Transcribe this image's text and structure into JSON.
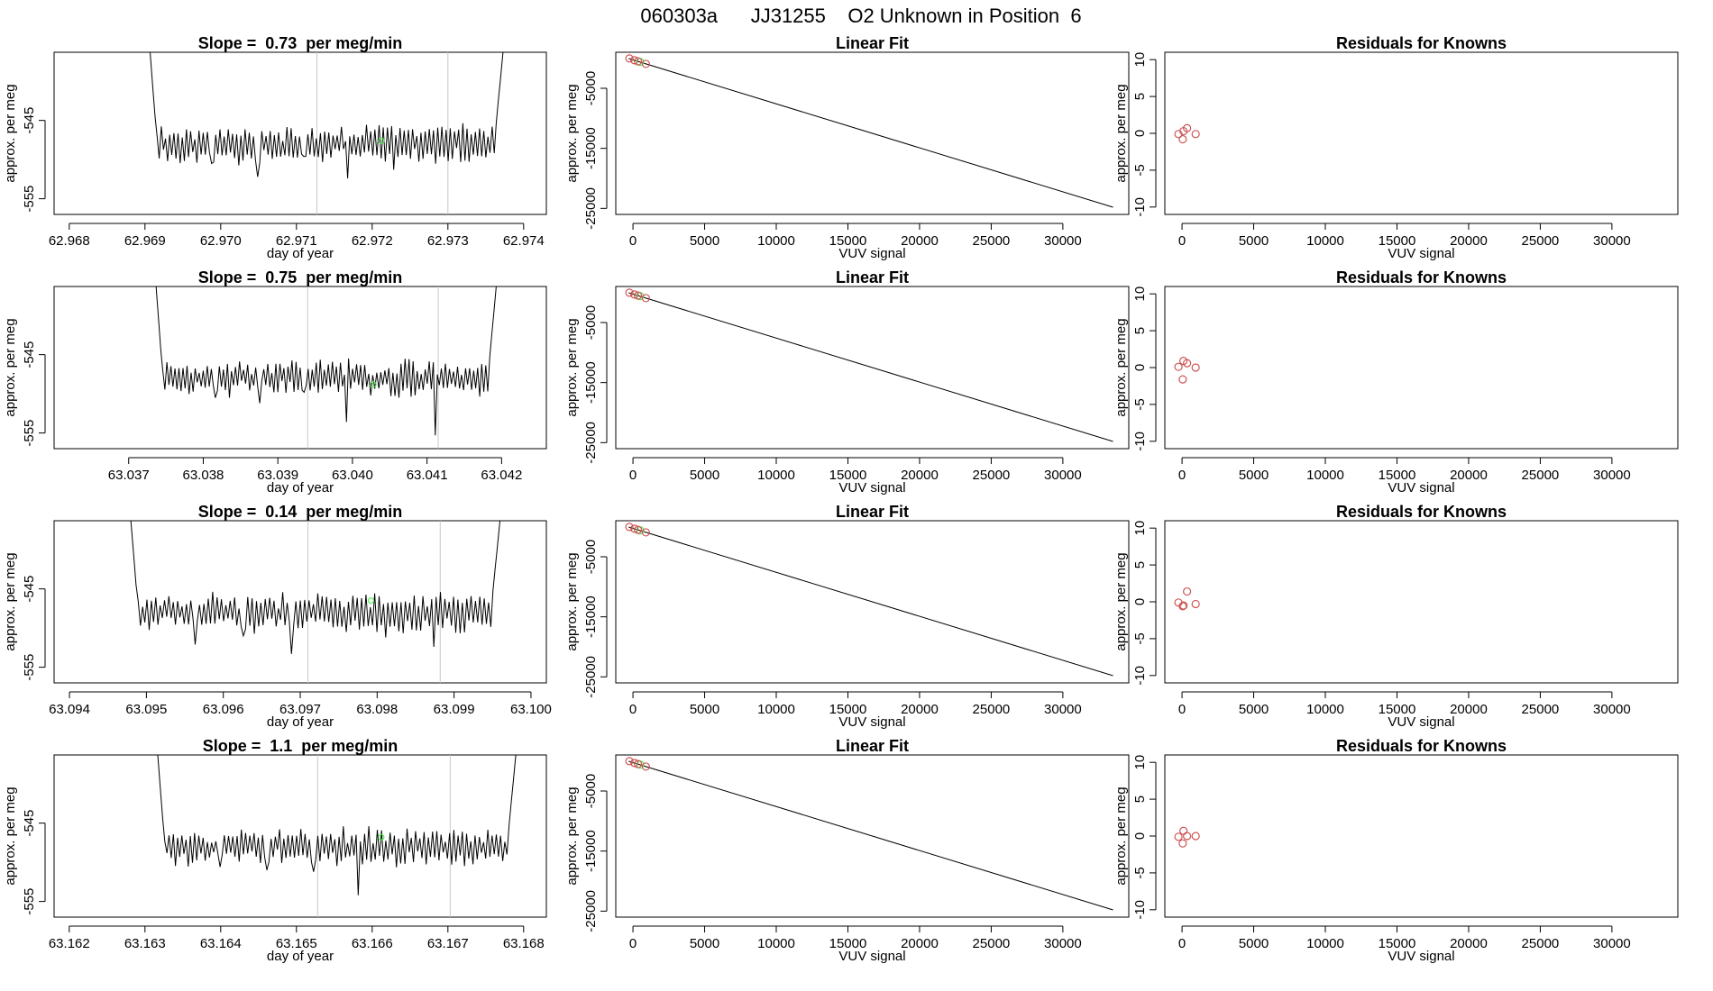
{
  "page_title": "060303a      JJ31255    O2 Unknown in Position  6",
  "colors": {
    "trace": "#000000",
    "guide": "#c8c8c8",
    "marker": "#55ee55",
    "point": "#cc5555"
  },
  "chart_data": [
    {
      "type": "line",
      "panel": "time-series",
      "row": 1,
      "title": "Slope =  0.73  per meg/min",
      "xlabel": "day of year",
      "ylabel": "approx. per meg",
      "xlim": [
        62.9678,
        62.9743
      ],
      "ylim": [
        -557,
        -536.3
      ],
      "xticks": [
        "62.968",
        "62.969",
        "62.970",
        "62.971",
        "62.972",
        "62.973",
        "62.974"
      ],
      "xtick_values": [
        62.968,
        62.969,
        62.97,
        62.971,
        62.972,
        62.973,
        62.974
      ],
      "yticks": [
        "-545",
        "-555"
      ],
      "ytick_values": [
        -545,
        -555
      ],
      "guide_lines_x": [
        62.97127,
        62.973
      ],
      "trace": {
        "x_start": 62.96905,
        "x_end": 62.97375,
        "start_level": -534,
        "end_level": -534,
        "mean": -548,
        "amplitude": 2.2,
        "seed": 11,
        "dips": [
          -550.5,
          -552.2,
          -549.6,
          -552.4,
          -551.3,
          -549.6
        ]
      },
      "marker": {
        "x": 62.97212,
        "y": -547.6
      }
    },
    {
      "type": "line",
      "panel": "linear-fit",
      "row": 1,
      "title": "Linear Fit",
      "xlabel": "VUV signal",
      "ylabel": "approx. per meg",
      "xlim": [
        -1200,
        34600
      ],
      "ylim": [
        -26000,
        1000
      ],
      "xticks": [
        "0",
        "5000",
        "10000",
        "15000",
        "20000",
        "25000",
        "30000"
      ],
      "yticks": [
        "-5000",
        "-15000",
        "-25000"
      ],
      "ytick_values": [
        -5000,
        -15000,
        -25000
      ],
      "fit_line": {
        "x": [
          -300,
          33500
        ],
        "y": [
          -50,
          -24800
        ]
      },
      "known_points": [
        {
          "x": -250,
          "y": -30
        },
        {
          "x": 100,
          "y": -330
        },
        {
          "x": 350,
          "y": -520
        },
        {
          "x": 900,
          "y": -940
        }
      ],
      "unknown_points": [
        {
          "x": 500,
          "y": -600
        }
      ]
    },
    {
      "type": "scatter",
      "panel": "residuals",
      "row": 1,
      "title": "Residuals for Knowns",
      "xlabel": "VUV signal",
      "ylabel": "approx. per meg",
      "xlim": [
        -1200,
        34600
      ],
      "ylim": [
        -11,
        11
      ],
      "xticks": [
        "0",
        "5000",
        "10000",
        "15000",
        "20000",
        "25000",
        "30000"
      ],
      "yticks": [
        "10",
        "5",
        "0",
        "-5",
        "-10"
      ],
      "ytick_values": [
        10,
        5,
        0,
        -5,
        -10
      ],
      "points": [
        {
          "x": -250,
          "y": -0.1
        },
        {
          "x": 100,
          "y": 0.3
        },
        {
          "x": 350,
          "y": 0.7
        },
        {
          "x": 50,
          "y": -0.8
        },
        {
          "x": 950,
          "y": -0.1
        }
      ]
    },
    {
      "type": "line",
      "panel": "time-series",
      "row": 2,
      "title": "Slope =  0.75  per meg/min",
      "xlabel": "day of year",
      "ylabel": "approx. per meg",
      "xlim": [
        63.036,
        63.0426
      ],
      "ylim": [
        -557,
        -536.3
      ],
      "xticks": [
        "63.037",
        "63.038",
        "63.039",
        "63.040",
        "63.041",
        "63.042"
      ],
      "xtick_values": [
        63.037,
        63.038,
        63.039,
        63.04,
        63.041,
        63.042
      ],
      "yticks": [
        "-545",
        "-555"
      ],
      "ytick_values": [
        -545,
        -555
      ],
      "guide_lines_x": [
        63.0394,
        63.04115
      ],
      "trace": {
        "x_start": 63.03735,
        "x_end": 63.04195,
        "start_level": -534,
        "end_level": -534,
        "mean": -548,
        "amplitude": 2.0,
        "seed": 23,
        "dips": [
          -550.5,
          -551.2,
          -549.8,
          -553.6,
          -550.3,
          -555.3
        ]
      },
      "marker": {
        "x": 63.04028,
        "y": -548.8
      }
    },
    {
      "type": "line",
      "panel": "linear-fit",
      "row": 2,
      "title": "Linear Fit",
      "xlabel": "VUV signal",
      "ylabel": "approx. per meg",
      "xlim": [
        -1200,
        34600
      ],
      "ylim": [
        -26000,
        1000
      ],
      "xticks": [
        "0",
        "5000",
        "10000",
        "15000",
        "20000",
        "25000",
        "30000"
      ],
      "yticks": [
        "-5000",
        "-15000",
        "-25000"
      ],
      "ytick_values": [
        -5000,
        -15000,
        -25000
      ],
      "fit_line": {
        "x": [
          -300,
          33500
        ],
        "y": [
          -50,
          -24800
        ]
      },
      "known_points": [
        {
          "x": -250,
          "y": -30
        },
        {
          "x": 100,
          "y": -330
        },
        {
          "x": 350,
          "y": -520
        },
        {
          "x": 900,
          "y": -940
        }
      ],
      "unknown_points": [
        {
          "x": 500,
          "y": -600
        }
      ]
    },
    {
      "type": "scatter",
      "panel": "residuals",
      "row": 2,
      "title": "Residuals for Knowns",
      "xlabel": "VUV signal",
      "ylabel": "approx. per meg",
      "xlim": [
        -1200,
        34600
      ],
      "ylim": [
        -11,
        11
      ],
      "xticks": [
        "0",
        "5000",
        "10000",
        "15000",
        "20000",
        "25000",
        "30000"
      ],
      "yticks": [
        "10",
        "5",
        "0",
        "-5",
        "-10"
      ],
      "ytick_values": [
        10,
        5,
        0,
        -5,
        -10
      ],
      "points": [
        {
          "x": -250,
          "y": 0.1
        },
        {
          "x": 100,
          "y": 0.9
        },
        {
          "x": 350,
          "y": 0.6
        },
        {
          "x": 50,
          "y": -1.6
        },
        {
          "x": 950,
          "y": 0.0
        }
      ]
    },
    {
      "type": "line",
      "panel": "time-series",
      "row": 3,
      "title": "Slope =  0.14  per meg/min",
      "xlabel": "day of year",
      "ylabel": "approx. per meg",
      "xlim": [
        63.0938,
        63.1002
      ],
      "ylim": [
        -557,
        -536.3
      ],
      "xticks": [
        "63.094",
        "63.095",
        "63.096",
        "63.097",
        "63.098",
        "63.099",
        "63.100"
      ],
      "xtick_values": [
        63.094,
        63.095,
        63.096,
        63.097,
        63.098,
        63.099,
        63.1
      ],
      "yticks": [
        "-545",
        "-555"
      ],
      "ytick_values": [
        -545,
        -555
      ],
      "guide_lines_x": [
        63.0971,
        63.09882
      ],
      "trace": {
        "x_start": 63.09478,
        "x_end": 63.09962,
        "start_level": -534,
        "end_level": -534,
        "mean": -548,
        "amplitude": 2.3,
        "seed": 37,
        "dips": [
          -552.1,
          -551.0,
          -553.3,
          -549.8,
          -551.2,
          -552.4
        ]
      },
      "marker": {
        "x": 63.09792,
        "y": -546.5
      }
    },
    {
      "type": "line",
      "panel": "linear-fit",
      "row": 3,
      "title": "Linear Fit",
      "xlabel": "VUV signal",
      "ylabel": "approx. per meg",
      "xlim": [
        -1200,
        34600
      ],
      "ylim": [
        -26000,
        1000
      ],
      "xticks": [
        "0",
        "5000",
        "10000",
        "15000",
        "20000",
        "25000",
        "30000"
      ],
      "yticks": [
        "-5000",
        "-15000",
        "-25000"
      ],
      "ytick_values": [
        -5000,
        -15000,
        -25000
      ],
      "fit_line": {
        "x": [
          -300,
          33500
        ],
        "y": [
          -50,
          -24800
        ]
      },
      "known_points": [
        {
          "x": -250,
          "y": -30
        },
        {
          "x": 100,
          "y": -330
        },
        {
          "x": 350,
          "y": -520
        },
        {
          "x": 900,
          "y": -940
        }
      ],
      "unknown_points": [
        {
          "x": 500,
          "y": -600
        }
      ]
    },
    {
      "type": "scatter",
      "panel": "residuals",
      "row": 3,
      "title": "Residuals for Knowns",
      "xlabel": "VUV signal",
      "ylabel": "approx. per meg",
      "xlim": [
        -1200,
        34600
      ],
      "ylim": [
        -11,
        11
      ],
      "xticks": [
        "0",
        "5000",
        "10000",
        "15000",
        "20000",
        "25000",
        "30000"
      ],
      "yticks": [
        "10",
        "5",
        "0",
        "-5",
        "-10"
      ],
      "ytick_values": [
        10,
        5,
        0,
        -5,
        -10
      ],
      "points": [
        {
          "x": -250,
          "y": -0.1
        },
        {
          "x": 100,
          "y": -0.5
        },
        {
          "x": 350,
          "y": 1.4
        },
        {
          "x": 50,
          "y": -0.6
        },
        {
          "x": 950,
          "y": -0.3
        }
      ]
    },
    {
      "type": "line",
      "panel": "time-series",
      "row": 4,
      "title": "Slope =  1.1  per meg/min",
      "xlabel": "day of year",
      "ylabel": "approx. per meg",
      "xlim": [
        63.1618,
        63.1683
      ],
      "ylim": [
        -557,
        -536.3
      ],
      "xticks": [
        "63.162",
        "63.163",
        "63.164",
        "63.165",
        "63.166",
        "63.167",
        "63.168"
      ],
      "xtick_values": [
        63.162,
        63.163,
        63.164,
        63.165,
        63.166,
        63.167,
        63.168
      ],
      "yticks": [
        "-545",
        "-555"
      ],
      "ytick_values": [
        -545,
        -555
      ],
      "guide_lines_x": [
        63.16528,
        63.16703
      ],
      "trace": {
        "x_start": 63.16315,
        "x_end": 63.16792,
        "start_level": -534,
        "end_level": -534,
        "mean": -548,
        "amplitude": 2.1,
        "seed": 53,
        "dips": [
          -550.6,
          -551.0,
          -551.2,
          -554.2,
          -550.2,
          -550.3
        ]
      },
      "marker": {
        "x": 63.16612,
        "y": -546.8
      }
    },
    {
      "type": "line",
      "panel": "linear-fit",
      "row": 4,
      "title": "Linear Fit",
      "xlabel": "VUV signal",
      "ylabel": "approx. per meg",
      "xlim": [
        -1200,
        34600
      ],
      "ylim": [
        -26000,
        1000
      ],
      "xticks": [
        "0",
        "5000",
        "10000",
        "15000",
        "20000",
        "25000",
        "30000"
      ],
      "yticks": [
        "-5000",
        "-15000",
        "-25000"
      ],
      "ytick_values": [
        -5000,
        -15000,
        -25000
      ],
      "fit_line": {
        "x": [
          -300,
          33500
        ],
        "y": [
          -50,
          -24800
        ]
      },
      "known_points": [
        {
          "x": -250,
          "y": -30
        },
        {
          "x": 100,
          "y": -330
        },
        {
          "x": 350,
          "y": -520
        },
        {
          "x": 900,
          "y": -940
        }
      ],
      "unknown_points": [
        {
          "x": 500,
          "y": -600
        }
      ]
    },
    {
      "type": "scatter",
      "panel": "residuals",
      "row": 4,
      "title": "Residuals for Knowns",
      "xlabel": "VUV signal",
      "ylabel": "approx. per meg",
      "xlim": [
        -1200,
        34600
      ],
      "ylim": [
        -11,
        11
      ],
      "xticks": [
        "0",
        "5000",
        "10000",
        "15000",
        "20000",
        "25000",
        "30000"
      ],
      "yticks": [
        "10",
        "5",
        "0",
        "-5",
        "-10"
      ],
      "ytick_values": [
        10,
        5,
        0,
        -5,
        -10
      ],
      "points": [
        {
          "x": -250,
          "y": -0.1
        },
        {
          "x": 100,
          "y": 0.7
        },
        {
          "x": 350,
          "y": 0.0
        },
        {
          "x": 50,
          "y": -1.0
        },
        {
          "x": 950,
          "y": 0.0
        }
      ]
    }
  ]
}
